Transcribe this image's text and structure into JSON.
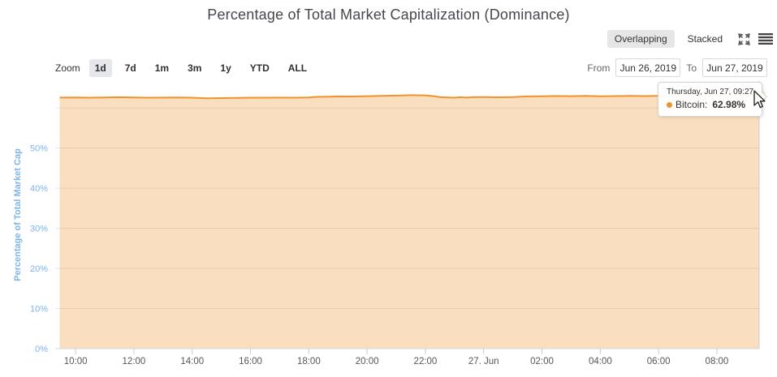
{
  "header": {
    "title": "Percentage of Total Market Capitalization (Dominance)",
    "view_toggle": {
      "overlapping": "Overlapping",
      "stacked": "Stacked",
      "selected": "Overlapping"
    },
    "icons": {
      "fullscreen": "expand-arrows-icon",
      "menu": "hamburger-icon"
    }
  },
  "toolbar": {
    "zoom_label": "Zoom",
    "ranges": [
      "1d",
      "7d",
      "1m",
      "3m",
      "1y",
      "YTD",
      "ALL"
    ],
    "selected_range": "1d",
    "from_label": "From",
    "from_value": "Jun 26, 2019",
    "to_label": "To",
    "to_value": "Jun 27, 2019"
  },
  "tooltip": {
    "header": "Thursday, Jun 27, 09:27",
    "series_label": "Bitcoin:",
    "value": "62.98%",
    "dot_color": "#f0932e"
  },
  "chart_data": {
    "type": "area",
    "title": "Percentage of Total Market Capitalization (Dominance)",
    "ylabel": "Percentage of Total Market Cap",
    "xlabel": "",
    "ylim": [
      0,
      66.7
    ],
    "grid": true,
    "legend_position": "none",
    "grid_values": [
      0,
      10,
      20,
      30,
      40,
      50,
      60
    ],
    "y_ticks": [
      {
        "v": 0,
        "label": "0%"
      },
      {
        "v": 10,
        "label": "10%"
      },
      {
        "v": 20,
        "label": "20%"
      },
      {
        "v": 30,
        "label": "30%"
      },
      {
        "v": 40,
        "label": "40%"
      },
      {
        "v": 50,
        "label": "50%"
      }
    ],
    "x_range_hours": [
      9.3,
      33.45
    ],
    "x_ticks": [
      {
        "h": 10,
        "label": "10:00"
      },
      {
        "h": 12,
        "label": "12:00"
      },
      {
        "h": 14,
        "label": "14:00"
      },
      {
        "h": 16,
        "label": "16:00"
      },
      {
        "h": 18,
        "label": "18:00"
      },
      {
        "h": 20,
        "label": "20:00"
      },
      {
        "h": 22,
        "label": "22:00"
      },
      {
        "h": 24,
        "label": "27. Jun"
      },
      {
        "h": 26,
        "label": "02:00"
      },
      {
        "h": 28,
        "label": "04:00"
      },
      {
        "h": 30,
        "label": "06:00"
      },
      {
        "h": 32,
        "label": "08:00"
      }
    ],
    "series": [
      {
        "name": "Bitcoin",
        "color": "#f0932e",
        "fill_opacity": 0.3,
        "last_point": {
          "time": "Thursday, Jun 27, 09:27",
          "value": 62.98
        },
        "points": [
          [
            9.45,
            62.58
          ],
          [
            10.0,
            62.62
          ],
          [
            10.5,
            62.56
          ],
          [
            11.0,
            62.6
          ],
          [
            11.5,
            62.67
          ],
          [
            12.0,
            62.62
          ],
          [
            12.5,
            62.55
          ],
          [
            13.0,
            62.58
          ],
          [
            13.5,
            62.62
          ],
          [
            14.0,
            62.55
          ],
          [
            14.5,
            62.42
          ],
          [
            15.0,
            62.45
          ],
          [
            15.5,
            62.52
          ],
          [
            16.0,
            62.56
          ],
          [
            16.5,
            62.55
          ],
          [
            17.0,
            62.58
          ],
          [
            17.5,
            62.55
          ],
          [
            18.0,
            62.62
          ],
          [
            18.3,
            62.78
          ],
          [
            18.7,
            62.82
          ],
          [
            19.0,
            62.88
          ],
          [
            19.5,
            62.86
          ],
          [
            20.0,
            62.95
          ],
          [
            20.5,
            63.02
          ],
          [
            21.0,
            63.08
          ],
          [
            21.5,
            63.18
          ],
          [
            22.0,
            63.15
          ],
          [
            22.3,
            62.95
          ],
          [
            22.5,
            62.72
          ],
          [
            22.8,
            62.62
          ],
          [
            23.0,
            62.55
          ],
          [
            23.2,
            62.68
          ],
          [
            23.4,
            62.58
          ],
          [
            23.7,
            62.72
          ],
          [
            24.0,
            62.7
          ],
          [
            24.5,
            62.66
          ],
          [
            25.0,
            62.72
          ],
          [
            25.5,
            62.88
          ],
          [
            26.0,
            62.92
          ],
          [
            26.5,
            62.98
          ],
          [
            27.0,
            62.95
          ],
          [
            27.5,
            63.0
          ],
          [
            28.0,
            62.92
          ],
          [
            28.5,
            62.96
          ],
          [
            29.0,
            63.0
          ],
          [
            29.5,
            62.96
          ],
          [
            30.0,
            63.0
          ],
          [
            30.5,
            63.04
          ],
          [
            31.0,
            62.96
          ],
          [
            31.5,
            62.92
          ],
          [
            32.0,
            62.96
          ],
          [
            32.5,
            62.92
          ],
          [
            33.0,
            62.95
          ],
          [
            33.45,
            62.98
          ]
        ]
      }
    ],
    "colors": {
      "axis_label_blue": "#7cb5ec",
      "x_label_gray": "#55565b",
      "gridline": "#e6e6e6",
      "axis_line": "#d4d7dc",
      "tick": "#cccccc",
      "crosshair": "#cccccc"
    }
  }
}
